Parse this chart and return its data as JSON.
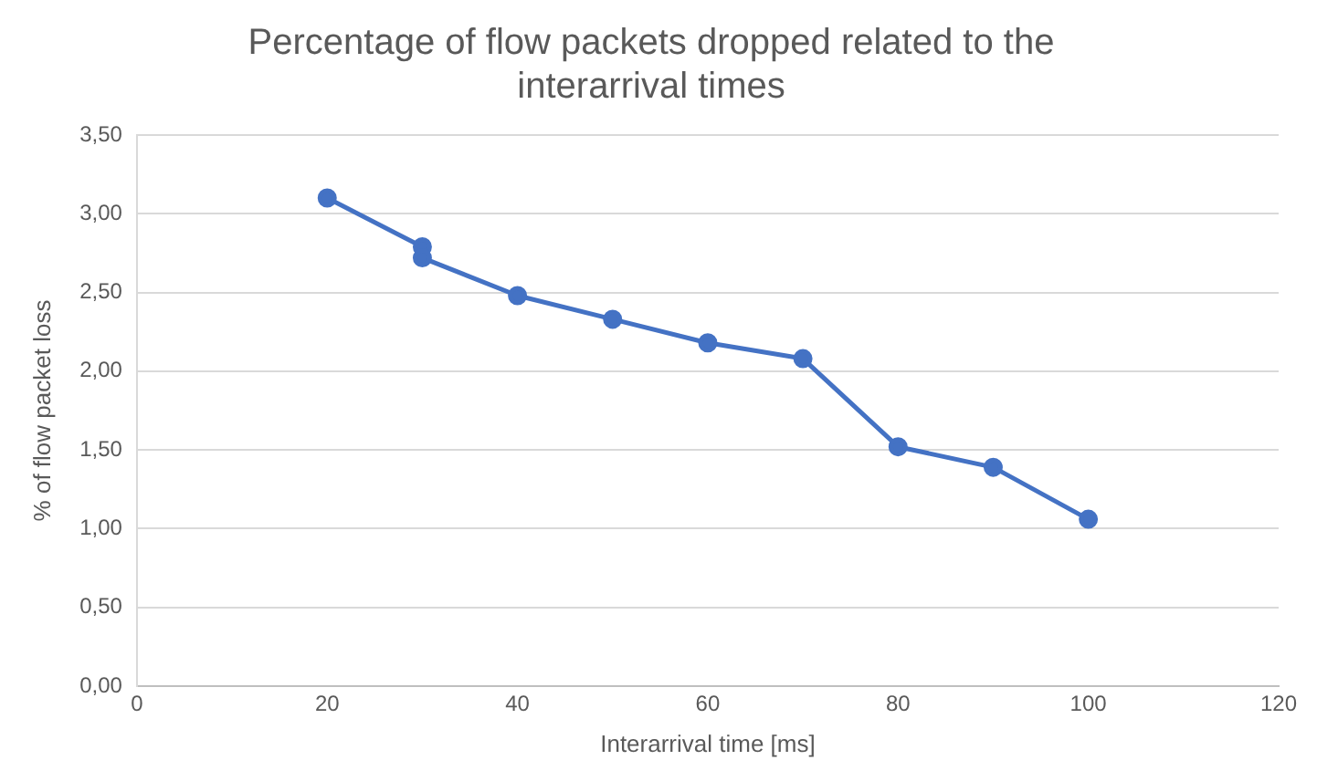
{
  "chart_data": {
    "type": "line",
    "title": "Percentage of flow packets dropped related to the interarrival times",
    "xlabel": "Interarrival time [ms]",
    "ylabel": "% of flow packet loss",
    "x": [
      20,
      30,
      30,
      40,
      50,
      60,
      70,
      80,
      90,
      100
    ],
    "series": [
      {
        "color": "#4472c4",
        "values": [
          3.1,
          2.79,
          2.72,
          2.48,
          2.33,
          2.18,
          2.08,
          1.52,
          1.39,
          1.06
        ]
      }
    ],
    "xlim": [
      0,
      120
    ],
    "xticks": [
      0,
      20,
      40,
      60,
      80,
      100,
      120
    ],
    "ylim": [
      0,
      3.5
    ],
    "yticks": [
      {
        "value": 0,
        "label": "0,00"
      },
      {
        "value": 0.5,
        "label": "0,50"
      },
      {
        "value": 1,
        "label": "1,00"
      },
      {
        "value": 1.5,
        "label": "1,50"
      },
      {
        "value": 2,
        "label": "2,00"
      },
      {
        "value": 2.5,
        "label": "2,50"
      },
      {
        "value": 3,
        "label": "3,00"
      },
      {
        "value": 3.5,
        "label": "3,50"
      }
    ],
    "grid": "y",
    "legend": false,
    "marker": "circle",
    "line_style": "solid"
  }
}
